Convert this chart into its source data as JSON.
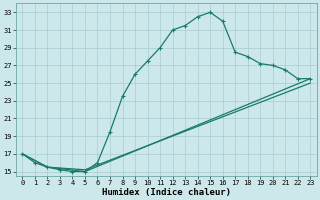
{
  "xlabel": "Humidex (Indice chaleur)",
  "bg_color": "#cce8ea",
  "grid_color": "#aacdd0",
  "line_color": "#1a7a6e",
  "line1_x": [
    0,
    1,
    2,
    3,
    4,
    5,
    6,
    7,
    8,
    9,
    10,
    11,
    12,
    13,
    14,
    15,
    16,
    17,
    18,
    19,
    20,
    21,
    22,
    23
  ],
  "line1_y": [
    17.0,
    16.0,
    15.5,
    15.2,
    15.0,
    15.0,
    16.0,
    19.5,
    23.5,
    26.0,
    27.5,
    29.0,
    31.0,
    31.5,
    32.5,
    33.0,
    32.0,
    28.5,
    28.0,
    27.2,
    27.0,
    26.5,
    25.5,
    25.5
  ],
  "line2_x": [
    0,
    2,
    5,
    23
  ],
  "line2_y": [
    17.0,
    15.5,
    15.0,
    25.5
  ],
  "line3_x": [
    0,
    2,
    5,
    23
  ],
  "line3_y": [
    17.0,
    15.5,
    15.2,
    25.0
  ],
  "xlim": [
    -0.5,
    23.5
  ],
  "ylim": [
    14.5,
    34.0
  ],
  "xtick_vals": [
    0,
    1,
    2,
    3,
    4,
    5,
    6,
    7,
    8,
    9,
    10,
    11,
    12,
    13,
    14,
    15,
    16,
    17,
    18,
    19,
    20,
    21,
    22,
    23
  ],
  "xtick_labels": [
    "0",
    "1",
    "2",
    "3",
    "4",
    "5",
    "6",
    "7",
    "8",
    "9",
    "10",
    "11",
    "12",
    "13",
    "14",
    "15",
    "16",
    "17",
    "18",
    "19",
    "20",
    "21",
    "22",
    "23"
  ],
  "ytick_values": [
    15,
    17,
    19,
    21,
    23,
    25,
    27,
    29,
    31,
    33
  ],
  "marker": "+",
  "markersize": 3.5,
  "linewidth": 0.9,
  "tick_fontsize": 5.0,
  "xlabel_fontsize": 6.5
}
